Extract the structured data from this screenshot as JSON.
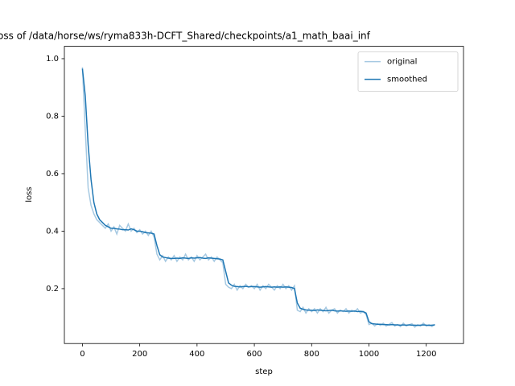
{
  "chart_data": {
    "type": "line",
    "title": "oss of /data/horse/ws/ryma833h-DCFT_Shared/checkpoints/a1_math_baai_inf",
    "xlabel": "step",
    "ylabel": "loss",
    "x": [
      0,
      10,
      20,
      30,
      40,
      50,
      60,
      70,
      80,
      90,
      100,
      110,
      120,
      130,
      140,
      150,
      160,
      170,
      180,
      190,
      200,
      210,
      220,
      230,
      240,
      250,
      260,
      270,
      280,
      290,
      300,
      310,
      320,
      330,
      340,
      350,
      360,
      370,
      380,
      390,
      400,
      410,
      420,
      430,
      440,
      450,
      460,
      470,
      480,
      490,
      500,
      510,
      520,
      530,
      540,
      550,
      560,
      570,
      580,
      590,
      600,
      610,
      620,
      630,
      640,
      650,
      660,
      670,
      680,
      690,
      700,
      710,
      720,
      730,
      740,
      750,
      760,
      770,
      780,
      790,
      800,
      810,
      820,
      830,
      840,
      850,
      860,
      870,
      880,
      890,
      900,
      910,
      920,
      930,
      940,
      950,
      960,
      970,
      980,
      990,
      1000,
      1010,
      1020,
      1030,
      1040,
      1050,
      1060,
      1070,
      1080,
      1090,
      1100,
      1110,
      1120,
      1130,
      1140,
      1150,
      1160,
      1170,
      1180,
      1190,
      1200,
      1210,
      1220,
      1230
    ],
    "series": [
      {
        "name": "original",
        "color": "#a6c9e2",
        "values": [
          0.97,
          0.75,
          0.55,
          0.49,
          0.46,
          0.44,
          0.43,
          0.42,
          0.41,
          0.425,
          0.4,
          0.415,
          0.39,
          0.42,
          0.41,
          0.4,
          0.425,
          0.4,
          0.41,
          0.395,
          0.405,
          0.39,
          0.4,
          0.385,
          0.4,
          0.38,
          0.32,
          0.3,
          0.315,
          0.295,
          0.31,
          0.3,
          0.315,
          0.295,
          0.31,
          0.3,
          0.32,
          0.3,
          0.31,
          0.295,
          0.315,
          0.3,
          0.31,
          0.32,
          0.3,
          0.31,
          0.295,
          0.31,
          0.3,
          0.29,
          0.215,
          0.205,
          0.2,
          0.215,
          0.195,
          0.21,
          0.2,
          0.215,
          0.205,
          0.21,
          0.2,
          0.215,
          0.195,
          0.21,
          0.2,
          0.215,
          0.205,
          0.195,
          0.21,
          0.2,
          0.215,
          0.2,
          0.21,
          0.195,
          0.21,
          0.125,
          0.12,
          0.135,
          0.115,
          0.13,
          0.12,
          0.13,
          0.115,
          0.13,
          0.12,
          0.135,
          0.115,
          0.125,
          0.13,
          0.115,
          0.125,
          0.12,
          0.13,
          0.115,
          0.125,
          0.12,
          0.13,
          0.115,
          0.12,
          0.11,
          0.075,
          0.08,
          0.07,
          0.078,
          0.072,
          0.08,
          0.07,
          0.076,
          0.082,
          0.07,
          0.075,
          0.068,
          0.08,
          0.07,
          0.074,
          0.078,
          0.066,
          0.075,
          0.07,
          0.08,
          0.07,
          0.075,
          0.068,
          0.076
        ]
      },
      {
        "name": "smoothed",
        "color": "#1f77b4",
        "values": [
          0.965,
          0.87,
          0.7,
          0.58,
          0.5,
          0.46,
          0.44,
          0.43,
          0.42,
          0.415,
          0.41,
          0.41,
          0.408,
          0.407,
          0.405,
          0.405,
          0.404,
          0.408,
          0.405,
          0.4,
          0.4,
          0.398,
          0.395,
          0.394,
          0.393,
          0.39,
          0.35,
          0.318,
          0.31,
          0.308,
          0.306,
          0.305,
          0.305,
          0.306,
          0.305,
          0.307,
          0.306,
          0.305,
          0.307,
          0.306,
          0.307,
          0.308,
          0.306,
          0.305,
          0.307,
          0.306,
          0.305,
          0.304,
          0.303,
          0.3,
          0.26,
          0.22,
          0.212,
          0.208,
          0.207,
          0.206,
          0.207,
          0.208,
          0.206,
          0.207,
          0.207,
          0.206,
          0.205,
          0.206,
          0.207,
          0.206,
          0.205,
          0.206,
          0.205,
          0.206,
          0.205,
          0.206,
          0.205,
          0.204,
          0.2,
          0.15,
          0.132,
          0.128,
          0.126,
          0.125,
          0.125,
          0.124,
          0.126,
          0.125,
          0.124,
          0.123,
          0.124,
          0.125,
          0.123,
          0.122,
          0.123,
          0.122,
          0.121,
          0.122,
          0.121,
          0.122,
          0.12,
          0.121,
          0.12,
          0.115,
          0.085,
          0.078,
          0.077,
          0.076,
          0.076,
          0.075,
          0.075,
          0.074,
          0.075,
          0.074,
          0.074,
          0.073,
          0.074,
          0.073,
          0.074,
          0.073,
          0.073,
          0.072,
          0.073,
          0.074,
          0.073,
          0.072,
          0.073,
          0.074
        ]
      }
    ],
    "xlim": [
      -63,
      1330
    ],
    "xticks": [
      0,
      200,
      400,
      600,
      800,
      1000,
      1200
    ],
    "ylim": [
      0.009,
      1.043
    ],
    "yticks": [
      0.2,
      0.4,
      0.6,
      0.8,
      {
        "value": 1,
        "label": "1.0"
      }
    ],
    "legend": "upper right"
  }
}
